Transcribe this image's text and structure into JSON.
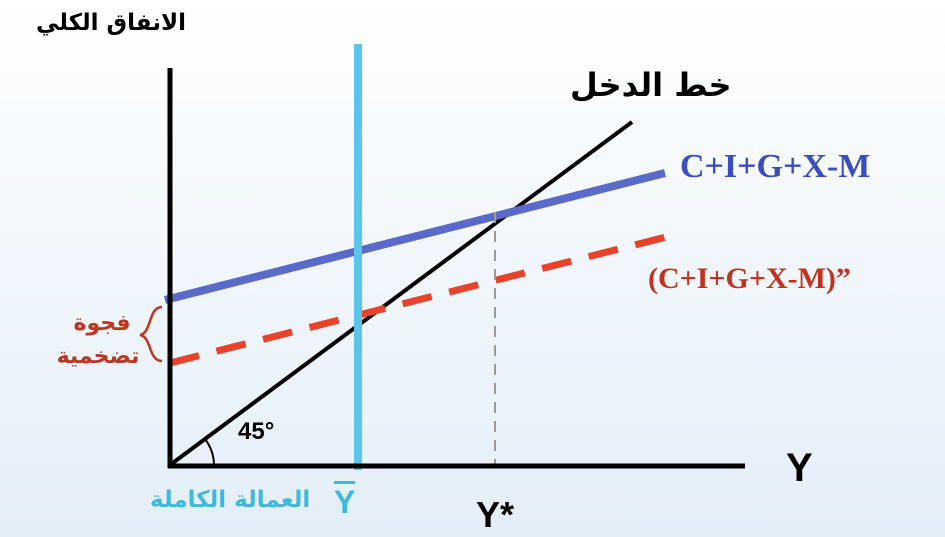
{
  "labels": {
    "y_axis_title": "الانفاق الكلي",
    "x_axis_title": "Y",
    "income_line": "خط الدخل",
    "ae_line": "C+I+G+X-M",
    "ae_line_shifted": "(C+I+G+X-M)”",
    "gap_line1": "فجوة",
    "gap_line2": "تضخمية",
    "angle": "45°",
    "full_employment_text": "العمالة الكاملة",
    "full_employment_symbol": "Y",
    "equilibrium": "Y*"
  },
  "colors": {
    "income_line": "#000000",
    "ae_line": "#5b6ac8",
    "ae_line_shifted": "#e8432a",
    "full_employment_line": "#5bc4ea",
    "equilibrium_dashed": "#9a9a9a",
    "ae_label": "#3b4cc0",
    "ae_shifted_label": "#c0341d",
    "gap_label": "#c0341d",
    "full_employment_label": "#3fb8e0"
  }
}
